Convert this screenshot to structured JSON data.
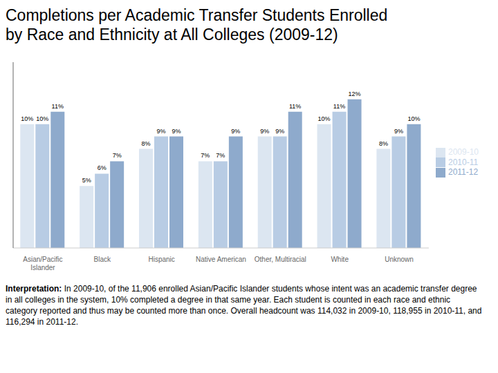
{
  "chart_data": {
    "type": "bar",
    "title": "Completions per Academic Transfer Students Enrolled",
    "subtitle": "by Race and Ethnicity at All Colleges (2009-12)",
    "categories": [
      "Asian/Pacific\nIslander",
      "Black",
      "Hispanic",
      "Native American",
      "Other, Multiracial",
      "White",
      "Unknown"
    ],
    "series": [
      {
        "name": "2009-10",
        "color": "#dce6f1",
        "values": [
          10,
          5,
          8,
          7,
          9,
          10,
          8
        ],
        "value_labels": [
          "10%",
          "5%",
          "8%",
          "7%",
          "9%",
          "10%",
          "8%"
        ]
      },
      {
        "name": "2010-11",
        "color": "#b8cce4",
        "values": [
          10,
          6,
          9,
          7,
          9,
          11,
          9
        ],
        "value_labels": [
          "10%",
          "6%",
          "9%",
          "7%",
          "9%",
          "11%",
          "9%"
        ]
      },
      {
        "name": "2011-12",
        "color": "#8eaacc",
        "values": [
          11,
          7,
          9,
          9,
          11,
          12,
          10
        ],
        "value_labels": [
          "11%",
          "7%",
          "9%",
          "9%",
          "11%",
          "12%",
          "10%"
        ]
      }
    ],
    "ylim": [
      0,
      15
    ],
    "grid": false,
    "legend": "right",
    "data_labels": true,
    "tick_labels": "x",
    "annotations": [
      "Interpretation:",
      "In 2009-10, of the 11,906 enrolled Asian/Pacific Islander students whose intent was an academic transfer degree in all colleges in the system, 10% completed a degree in that same year. Each student is counted in each race and ethnic category reported and thus may be counted more than once. Overall headcount was 114,032 in 2009-10, 118,955 in 2010-11, and 116,294 in 2011-12."
    ]
  }
}
